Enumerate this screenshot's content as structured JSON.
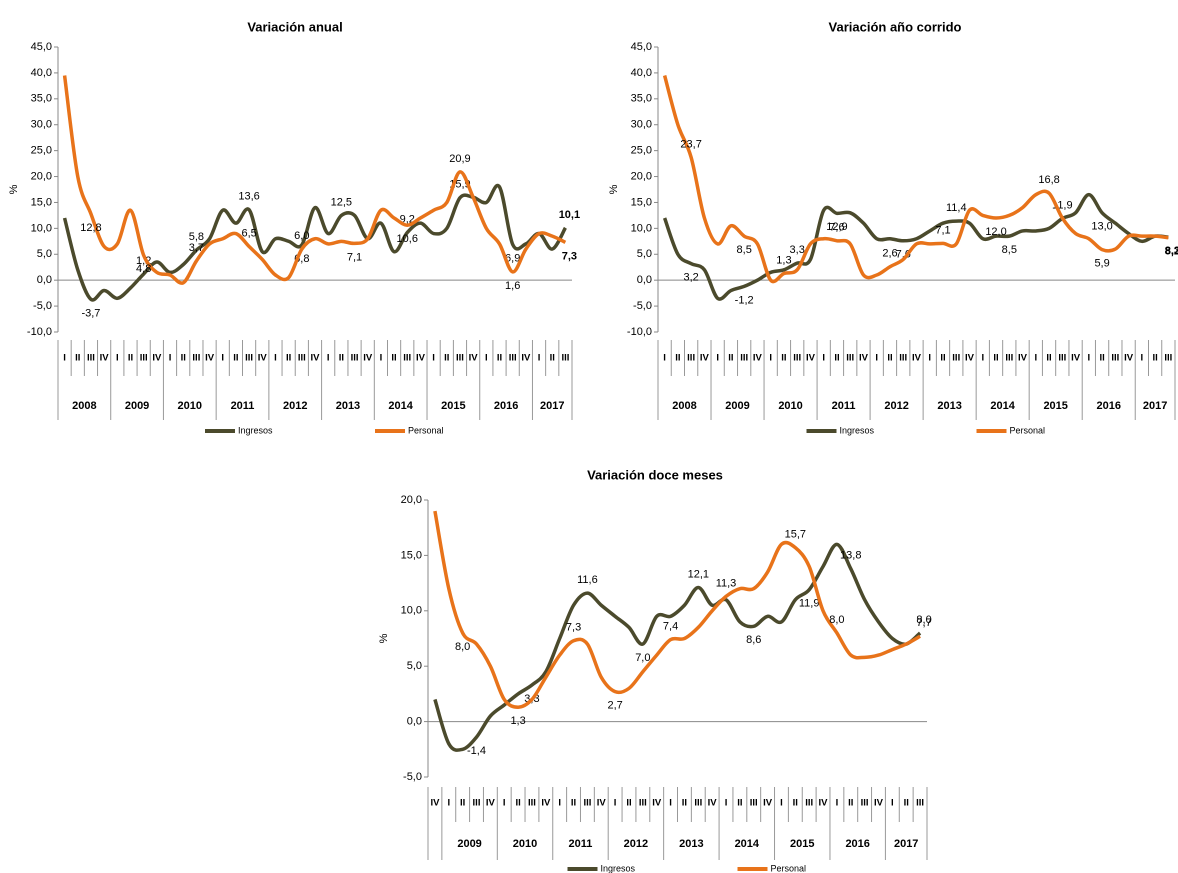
{
  "chart_data": [
    {
      "type": "line",
      "title": "Variación anual",
      "y_label": "%",
      "categories": [
        "I",
        "II",
        "III",
        "IV",
        "I",
        "II",
        "III",
        "IV",
        "I",
        "II",
        "III",
        "IV",
        "I",
        "II",
        "III",
        "IV",
        "I",
        "II",
        "III",
        "IV",
        "I",
        "II",
        "III",
        "IV",
        "I",
        "II",
        "III",
        "IV",
        "I",
        "II",
        "III",
        "IV",
        "I",
        "II",
        "III",
        "IV",
        "I",
        "II",
        "III"
      ],
      "years": [
        "2008",
        "2009",
        "2010",
        "2011",
        "2012",
        "2013",
        "2014",
        "2015",
        "2016",
        "2017"
      ],
      "ylim": [
        -10,
        45
      ],
      "yticks": [
        {
          "value": -10,
          "label": "-10,0"
        },
        {
          "value": -5,
          "label": "-5,0"
        },
        {
          "value": 0,
          "label": "0,0"
        },
        {
          "value": 5,
          "label": "5,0"
        },
        {
          "value": 10,
          "label": "10,0"
        },
        {
          "value": 15,
          "label": "15,0"
        },
        {
          "value": 20,
          "label": "20,0"
        },
        {
          "value": 25,
          "label": "25,0"
        },
        {
          "value": 30,
          "label": "30,0"
        },
        {
          "value": 35,
          "label": "35,0"
        },
        {
          "value": 40,
          "label": "40,0"
        },
        {
          "value": 45,
          "label": "45,0"
        }
      ],
      "series": [
        {
          "name": "Ingresos",
          "color": "#4b4a2c",
          "values": [
            12,
            2,
            -3.7,
            -2,
            -3.5,
            -1.5,
            1.2,
            3.5,
            1.5,
            3,
            5.8,
            8,
            13.5,
            11,
            13.6,
            5.5,
            8,
            7.5,
            6.8,
            14,
            9,
            12.5,
            12.5,
            8,
            11,
            5.5,
            9.2,
            11,
            9,
            10,
            15.9,
            16,
            15,
            18,
            6.9,
            7,
            9,
            6,
            10.1
          ],
          "value_labels": [
            null,
            null,
            "-3,7",
            null,
            null,
            null,
            "1,2",
            null,
            null,
            null,
            "5,8",
            null,
            null,
            null,
            "13,6",
            null,
            null,
            null,
            "6,8",
            null,
            null,
            "12,5",
            null,
            null,
            null,
            null,
            "9,2",
            null,
            null,
            null,
            "15,9",
            null,
            null,
            null,
            "6,9",
            null,
            null,
            null,
            "10,1"
          ]
        },
        {
          "name": "Personal",
          "color": "#e8731a",
          "values": [
            39.5,
            20,
            12.8,
            6.5,
            7,
            13.5,
            4.8,
            1.5,
            1,
            -0.5,
            3.7,
            7,
            8,
            9,
            6.5,
            4,
            1,
            0.5,
            6.0,
            8,
            7,
            7.5,
            7.1,
            8,
            13.5,
            12,
            10.6,
            12,
            13.5,
            15,
            20.9,
            16,
            10,
            7,
            1.6,
            6,
            9,
            8.5,
            7.3
          ],
          "value_labels": [
            null,
            null,
            "12,8",
            null,
            null,
            null,
            "4,8",
            null,
            null,
            null,
            "3,7",
            null,
            null,
            null,
            "6,5",
            null,
            null,
            null,
            "6,0",
            null,
            null,
            null,
            "7,1",
            null,
            null,
            null,
            "10,6",
            null,
            null,
            null,
            "20,9",
            null,
            null,
            null,
            "1,6",
            null,
            null,
            null,
            "7,3"
          ]
        }
      ]
    },
    {
      "type": "line",
      "title": "Variación año corrido",
      "y_label": "%",
      "categories": [
        "I",
        "II",
        "III",
        "IV",
        "I",
        "II",
        "III",
        "IV",
        "I",
        "II",
        "III",
        "IV",
        "I",
        "II",
        "III",
        "IV",
        "I",
        "II",
        "III",
        "IV",
        "I",
        "II",
        "III",
        "IV",
        "I",
        "II",
        "III",
        "IV",
        "I",
        "II",
        "III",
        "IV",
        "I",
        "II",
        "III",
        "IV",
        "I",
        "II",
        "III"
      ],
      "years": [
        "2008",
        "2009",
        "2010",
        "2011",
        "2012",
        "2013",
        "2014",
        "2015",
        "2016",
        "2017"
      ],
      "ylim": [
        -10,
        45
      ],
      "yticks": [
        {
          "value": -10,
          "label": "-10,0"
        },
        {
          "value": -5,
          "label": "-5,0"
        },
        {
          "value": 0,
          "label": "0,0"
        },
        {
          "value": 5,
          "label": "5,0"
        },
        {
          "value": 10,
          "label": "10,0"
        },
        {
          "value": 15,
          "label": "15,0"
        },
        {
          "value": 20,
          "label": "20,0"
        },
        {
          "value": 25,
          "label": "25,0"
        },
        {
          "value": 30,
          "label": "30,0"
        },
        {
          "value": 35,
          "label": "35,0"
        },
        {
          "value": 40,
          "label": "40,0"
        },
        {
          "value": 45,
          "label": "45,0"
        }
      ],
      "series": [
        {
          "name": "Ingresos",
          "color": "#4b4a2c",
          "values": [
            12,
            5,
            3.2,
            2,
            -3.5,
            -2,
            -1.2,
            0,
            1.5,
            2,
            3.3,
            4,
            13.5,
            12.9,
            13,
            11,
            8,
            8,
            7.6,
            8,
            9.5,
            11,
            11.4,
            11,
            8,
            8.5,
            8.5,
            9.5,
            9.5,
            10,
            11.9,
            13,
            16.5,
            13.0,
            11,
            9,
            7.5,
            8.5,
            8.3
          ],
          "value_labels": [
            null,
            null,
            "3,2",
            null,
            null,
            null,
            "-1,2",
            null,
            null,
            null,
            "3,3",
            null,
            null,
            "12,9",
            null,
            null,
            null,
            null,
            "7,6",
            null,
            null,
            null,
            "11,4",
            null,
            null,
            null,
            "8,5",
            null,
            null,
            null,
            "11,9",
            null,
            null,
            "13,0",
            null,
            null,
            null,
            null,
            "8,3"
          ]
        },
        {
          "name": "Personal",
          "color": "#e8731a",
          "values": [
            39.5,
            30,
            23.7,
            12,
            7,
            10.5,
            8.5,
            7,
            0,
            1.3,
            2,
            7,
            8,
            7.6,
            7,
            1,
            1,
            2.6,
            4,
            7,
            7,
            7.1,
            7,
            13.5,
            12.5,
            12.0,
            12.5,
            14,
            16.5,
            16.8,
            12,
            9,
            8,
            5.9,
            6,
            8.5,
            8.5,
            8.5,
            8.2
          ],
          "value_labels": [
            null,
            null,
            "23,7",
            null,
            null,
            null,
            "8,5",
            null,
            null,
            "1,3",
            null,
            null,
            null,
            "7,6",
            null,
            null,
            null,
            "2,6",
            null,
            null,
            null,
            "7,1",
            null,
            null,
            null,
            "12,0",
            null,
            null,
            null,
            "16,8",
            null,
            null,
            null,
            "5,9",
            null,
            null,
            null,
            null,
            "8,2"
          ]
        }
      ]
    },
    {
      "type": "line",
      "title": "Variación doce meses",
      "y_label": "%",
      "categories": [
        "IV",
        "I",
        "II",
        "III",
        "IV",
        "I",
        "II",
        "III",
        "IV",
        "I",
        "II",
        "III",
        "IV",
        "I",
        "II",
        "III",
        "IV",
        "I",
        "II",
        "III",
        "IV",
        "I",
        "II",
        "III",
        "IV",
        "I",
        "II",
        "III",
        "IV",
        "I",
        "II",
        "III",
        "IV",
        "I",
        "II",
        "III"
      ],
      "years": [
        null,
        "2009",
        "2010",
        "2011",
        "2012",
        "2013",
        "2014",
        "2015",
        "2016",
        "2017"
      ],
      "ylim": [
        -5,
        20
      ],
      "yticks": [
        {
          "value": -5,
          "label": "-5,0"
        },
        {
          "value": 0,
          "label": "0,0"
        },
        {
          "value": 5,
          "label": "5,0"
        },
        {
          "value": 10,
          "label": "10,0"
        },
        {
          "value": 15,
          "label": "15,0"
        },
        {
          "value": 20,
          "label": "20,0"
        }
      ],
      "series": [
        {
          "name": "Ingresos",
          "color": "#4b4a2c",
          "values": [
            2,
            -2,
            -2.5,
            -1.4,
            0.5,
            1.5,
            2.5,
            3.3,
            4.5,
            7.5,
            10.5,
            11.6,
            10.5,
            9.5,
            8.5,
            7.0,
            9.5,
            9.5,
            10.5,
            12.1,
            10.5,
            11,
            9,
            8.6,
            9.5,
            9,
            11,
            11.9,
            14,
            16,
            13.8,
            11,
            9,
            7.5,
            7,
            8.0
          ],
          "value_labels": [
            null,
            null,
            null,
            "-1,4",
            null,
            null,
            null,
            "3,3",
            null,
            null,
            null,
            "11,6",
            null,
            null,
            null,
            "7,0",
            null,
            null,
            null,
            "12,1",
            null,
            null,
            null,
            "8,6",
            null,
            null,
            null,
            "11,9",
            null,
            null,
            "13,8",
            null,
            null,
            null,
            null,
            "8,0"
          ]
        },
        {
          "name": "Personal",
          "color": "#e8731a",
          "values": [
            19,
            12,
            8.0,
            7,
            5,
            2,
            1.3,
            2,
            4,
            6,
            7.3,
            7,
            4,
            2.7,
            3,
            4.5,
            6,
            7.4,
            7.5,
            8.5,
            10,
            11.3,
            12,
            12,
            13.5,
            16,
            15.7,
            14,
            10,
            8.0,
            6,
            5.8,
            6,
            6.5,
            7,
            7.7
          ],
          "value_labels": [
            null,
            null,
            "8,0",
            null,
            null,
            null,
            "1,3",
            null,
            null,
            null,
            "7,3",
            null,
            null,
            "2,7",
            null,
            null,
            null,
            "7,4",
            null,
            null,
            null,
            "11,3",
            null,
            null,
            null,
            null,
            "15,7",
            null,
            null,
            "8,0",
            null,
            null,
            null,
            null,
            null,
            "7,7"
          ]
        }
      ]
    }
  ]
}
